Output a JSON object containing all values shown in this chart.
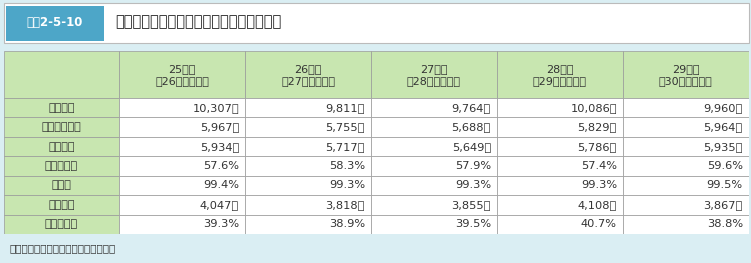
{
  "title": "高等専門学校本科卒業者の進路状況の推移",
  "title_label": "図表2-5-10",
  "source": "（出典）文部科学省「学校基本統計」",
  "columns": [
    "",
    "25年度\n（26年３月卒）",
    "26年度\n（27年３月卒）",
    "27年度\n（28年３月卒）",
    "28年度\n（29年３月卒）",
    "29年度\n（30年３月卒）"
  ],
  "rows": [
    [
      "卒業者数",
      "10,307人",
      "9,811人",
      "9,764人",
      "10,086人",
      "9,960人"
    ],
    [
      "就職希望者数",
      "5,967人",
      "5,755人",
      "5,688人",
      "5,829人",
      "5,964人"
    ],
    [
      "就職者数",
      "5,934人",
      "5,717人",
      "5,649人",
      "5,786人",
      "5,935人"
    ],
    [
      "就職者割合",
      "57.6%",
      "58.3%",
      "57.9%",
      "57.4%",
      "59.6%"
    ],
    [
      "就職率",
      "99.4%",
      "99.3%",
      "99.3%",
      "99.3%",
      "99.5%"
    ],
    [
      "進学者数",
      "4,047人",
      "3,818人",
      "3,855人",
      "4,108人",
      "3,867人"
    ],
    [
      "進学者割合",
      "39.3%",
      "38.9%",
      "39.5%",
      "40.7%",
      "38.8%"
    ]
  ],
  "header_bg": "#c8e6b0",
  "row_label_bg": "#c8e6b0",
  "row_data_bg": "#ffffff",
  "border_color": "#999999",
  "title_label_bg": "#4da6c8",
  "title_label_fg": "#ffffff",
  "outer_bg": "#daeef3",
  "title_area_bg": "#ffffff",
  "header_text_color": "#333333",
  "data_text_color": "#333333",
  "source_color": "#333333",
  "fig_width": 7.51,
  "fig_height": 2.63
}
